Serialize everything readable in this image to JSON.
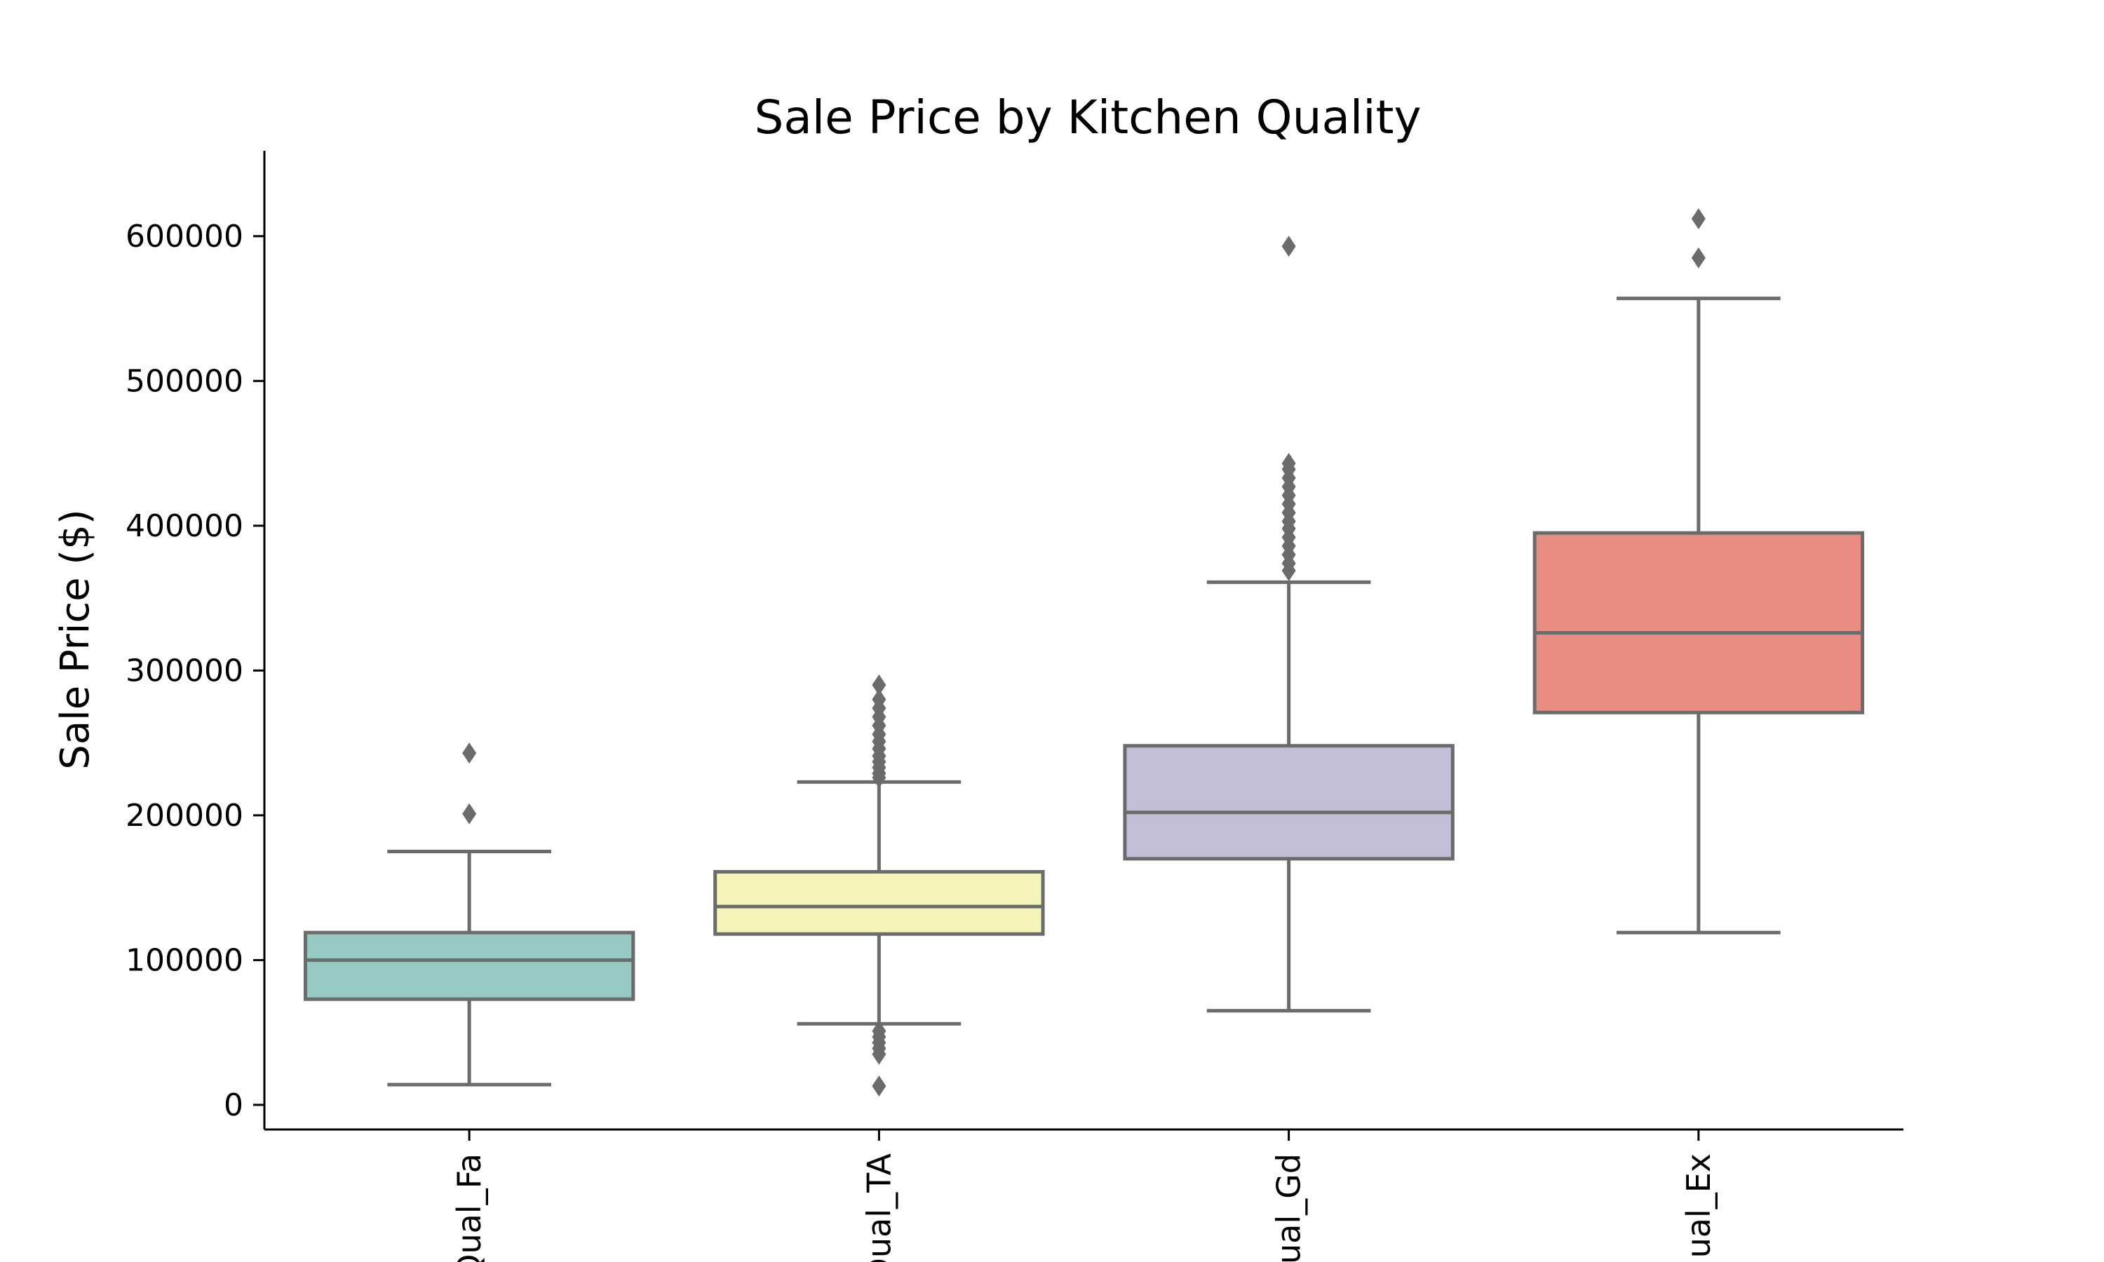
{
  "chart_data": {
    "type": "box",
    "title": "Sale Price by Kitchen Quality",
    "xlabel": "",
    "ylabel": "Sale Price ($)",
    "ylim": [
      -17000,
      659000
    ],
    "yticks": [
      0,
      100000,
      200000,
      300000,
      400000,
      500000,
      600000
    ],
    "ytick_labels": [
      "0",
      "100000",
      "200000",
      "300000",
      "400000",
      "500000",
      "600000"
    ],
    "categories": [
      "KitchenQual_Fa",
      "KitchenQual_TA",
      "KitchenQual_Gd",
      "KitchenQual_Ex"
    ],
    "tick_labels_visible": [
      "Qual_Fa",
      "Qual_TA",
      "ual_Gd",
      "ual_Ex"
    ],
    "grid": false,
    "box_edge_color": "#6b6b6b",
    "boxes": [
      {
        "category": "KitchenQual_Fa",
        "color": "#96c9c1",
        "whisker_low": 14000,
        "q1": 73000,
        "median": 100000,
        "q3": 119000,
        "whisker_high": 175000,
        "outliers": [
          201000,
          243000
        ]
      },
      {
        "category": "KitchenQual_TA",
        "color": "#f5f5b9",
        "whisker_low": 56000,
        "q1": 118000,
        "median": 137000,
        "q3": 161000,
        "whisker_high": 223000,
        "outliers": [
          13000,
          35000,
          39000,
          43000,
          47000,
          51000,
          226000,
          229000,
          233000,
          237000,
          241000,
          246000,
          251000,
          256000,
          262000,
          268000,
          274000,
          280000,
          290000
        ]
      },
      {
        "category": "KitchenQual_Gd",
        "color": "#c2bed8",
        "whisker_low": 65000,
        "q1": 170000,
        "median": 202000,
        "q3": 248000,
        "whisker_high": 361000,
        "outliers": [
          369000,
          374000,
          380000,
          386000,
          392000,
          398000,
          403000,
          409000,
          415000,
          421000,
          427000,
          433000,
          439000,
          443000,
          593000
        ]
      },
      {
        "category": "KitchenQual_Ex",
        "color": "#e98c82",
        "whisker_low": 119000,
        "q1": 271000,
        "median": 326000,
        "q3": 395000,
        "whisker_high": 557000,
        "outliers": [
          585000,
          612000
        ]
      }
    ]
  }
}
